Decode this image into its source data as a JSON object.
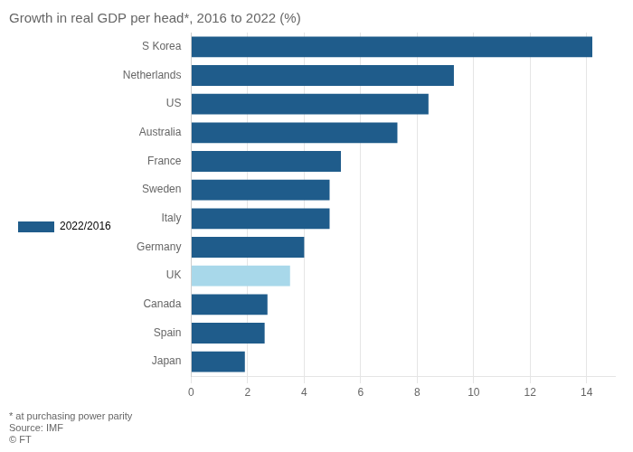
{
  "chart_data": {
    "type": "bar",
    "orientation": "horizontal",
    "title": "Growth in real GDP per head*, 2016 to 2022 (%)",
    "categories": [
      "S Korea",
      "Netherlands",
      "US",
      "Australia",
      "France",
      "Sweden",
      "Italy",
      "Germany",
      "UK",
      "Canada",
      "Spain",
      "Japan"
    ],
    "series": [
      {
        "name": "2022/2016",
        "color": "#1f5c8b",
        "colors": [
          "#1f5c8b",
          "#1f5c8b",
          "#1f5c8b",
          "#1f5c8b",
          "#1f5c8b",
          "#1f5c8b",
          "#1f5c8b",
          "#1f5c8b",
          "#a8d8ea",
          "#1f5c8b",
          "#1f5c8b",
          "#1f5c8b"
        ],
        "values": [
          14.2,
          9.3,
          8.4,
          7.3,
          5.3,
          4.9,
          4.9,
          4.0,
          3.5,
          2.7,
          2.6,
          1.9
        ]
      }
    ],
    "xlim": [
      0,
      15
    ],
    "xticks": [
      0,
      2,
      4,
      6,
      8,
      10,
      12,
      14
    ],
    "grid": true,
    "legend": "top left",
    "annotations": [
      "* at purchasing power parity",
      "Source: IMF",
      "© FT"
    ]
  }
}
